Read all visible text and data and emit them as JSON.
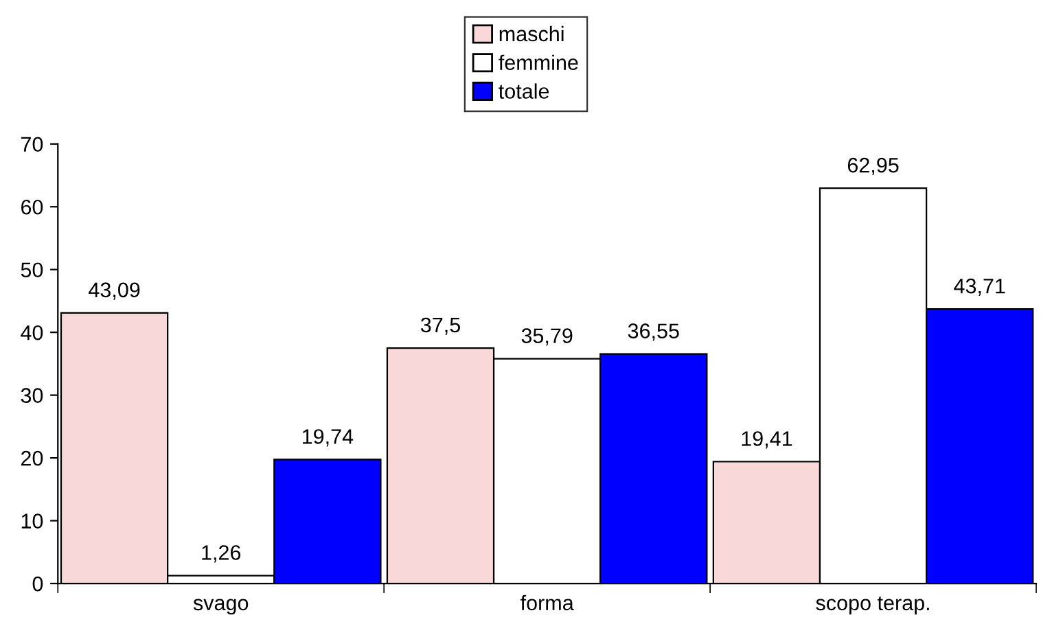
{
  "chart_data": {
    "type": "bar",
    "categories": [
      "svago",
      "forma",
      "scopo terap."
    ],
    "series": [
      {
        "name": "maschi",
        "color": "#f8d8d8",
        "values": [
          43.09,
          37.5,
          19.41
        ],
        "value_labels": [
          "43,09",
          "37,5",
          "19,41"
        ]
      },
      {
        "name": "femmine",
        "color": "#ffffff",
        "values": [
          1.26,
          35.79,
          62.95
        ],
        "value_labels": [
          "1,26",
          "35,79",
          "62,95"
        ]
      },
      {
        "name": "totale",
        "color": "#0000ff",
        "values": [
          19.74,
          36.55,
          43.71
        ],
        "value_labels": [
          "19,74",
          "36,55",
          "43,71"
        ]
      }
    ],
    "ylim": [
      0,
      70
    ],
    "yticks": [
      0,
      10,
      20,
      30,
      40,
      50,
      60,
      70
    ],
    "legend": "top",
    "grid": false
  }
}
